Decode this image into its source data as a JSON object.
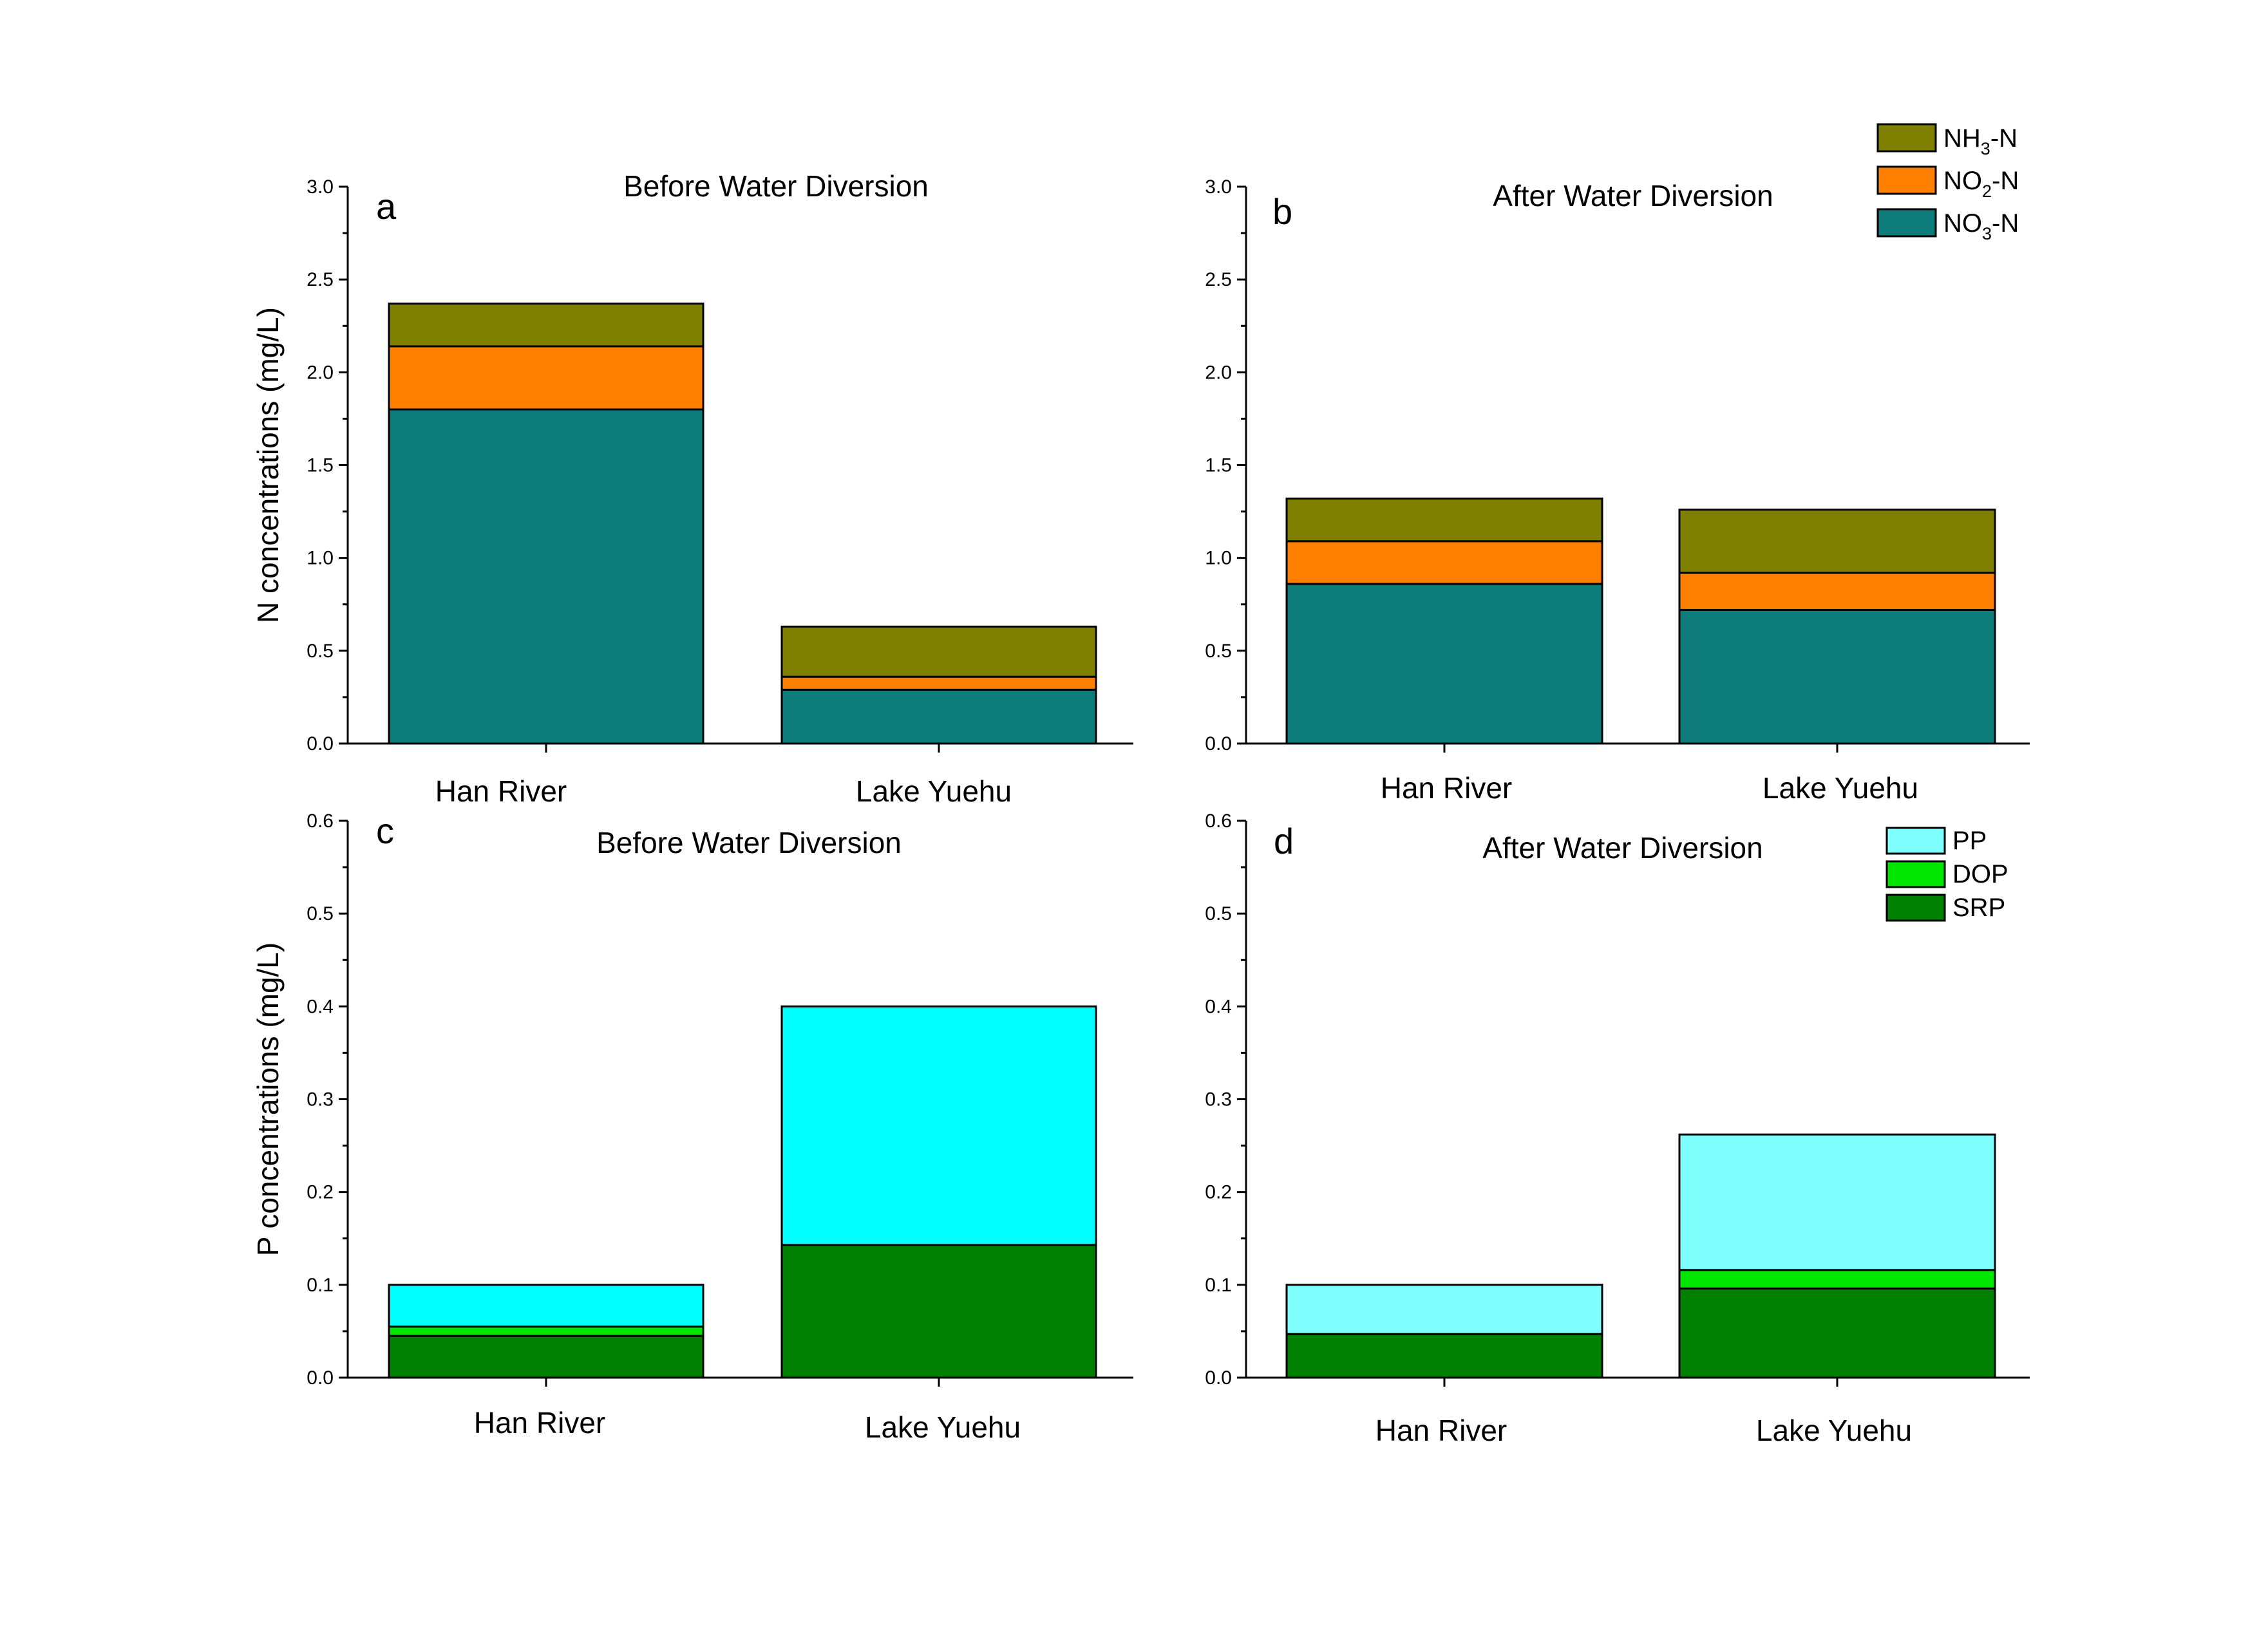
{
  "chart_data": [
    {
      "panel": "a",
      "type": "bar",
      "stacked": true,
      "title": "Before Water Diversion",
      "ylabel": "N concentrations (mg/L)",
      "categories": [
        "Han River",
        "Lake Yuehu"
      ],
      "ylim": [
        0,
        3.0
      ],
      "yticks": [
        "0.0",
        "0.5",
        "1.0",
        "1.5",
        "2.0",
        "2.5",
        "3.0"
      ],
      "series": [
        {
          "name": "NO3-N",
          "color": "#0E7C7B",
          "values": [
            1.8,
            0.29
          ]
        },
        {
          "name": "NO2-N",
          "color": "#FF8000",
          "values": [
            0.34,
            0.07
          ]
        },
        {
          "name": "NH3-N",
          "color": "#808000",
          "values": [
            0.23,
            0.27
          ]
        }
      ]
    },
    {
      "panel": "b",
      "type": "bar",
      "stacked": true,
      "title": "After Water Diversion",
      "ylabel": "",
      "categories": [
        "Han River",
        "Lake Yuehu"
      ],
      "ylim": [
        0,
        3.0
      ],
      "yticks": [
        "0.0",
        "0.5",
        "1.0",
        "1.5",
        "2.0",
        "2.5",
        "3.0"
      ],
      "series": [
        {
          "name": "NO3-N",
          "color": "#0E7C7B",
          "values": [
            0.86,
            0.72
          ]
        },
        {
          "name": "NO2-N",
          "color": "#FF8000",
          "values": [
            0.23,
            0.2
          ]
        },
        {
          "name": "NH3-N",
          "color": "#808000",
          "values": [
            0.23,
            0.34
          ]
        }
      ]
    },
    {
      "panel": "c",
      "type": "bar",
      "stacked": true,
      "title": "Before Water Diversion",
      "ylabel": "P concentrations (mg/L)",
      "categories": [
        "Han River",
        "Lake Yuehu"
      ],
      "ylim": [
        0,
        0.6
      ],
      "yticks": [
        "0.0",
        "0.1",
        "0.2",
        "0.3",
        "0.4",
        "0.5",
        "0.6"
      ],
      "series": [
        {
          "name": "SRP",
          "color": "#008000",
          "values": [
            0.045,
            0.143
          ]
        },
        {
          "name": "DOP",
          "color": "#00E600",
          "values": [
            0.01,
            0.0
          ]
        },
        {
          "name": "PP",
          "color": "#00FFFF",
          "values": [
            0.045,
            0.257
          ]
        }
      ]
    },
    {
      "panel": "d",
      "type": "bar",
      "stacked": true,
      "title": "After Water Diversion",
      "ylabel": "",
      "categories": [
        "Han River",
        "Lake Yuehu"
      ],
      "ylim": [
        0,
        0.6
      ],
      "yticks": [
        "0.0",
        "0.1",
        "0.2",
        "0.3",
        "0.4",
        "0.5",
        "0.6"
      ],
      "series": [
        {
          "name": "SRP",
          "color": "#008000",
          "values": [
            0.047,
            0.096
          ]
        },
        {
          "name": "DOP",
          "color": "#00E600",
          "values": [
            0.0,
            0.02
          ]
        },
        {
          "name": "PP",
          "color": "#80FFFF",
          "values": [
            0.053,
            0.146
          ]
        }
      ]
    }
  ],
  "legends": {
    "nitrogen": [
      {
        "base": "NH",
        "sub": "3",
        "suffix": "-N",
        "color": "#808000"
      },
      {
        "base": "NO",
        "sub": "2",
        "suffix": "-N",
        "color": "#FF8000"
      },
      {
        "base": "NO",
        "sub": "3",
        "suffix": "-N",
        "color": "#0E7C7B"
      }
    ],
    "phosphorus": [
      {
        "label": "PP",
        "color": "#80FFFF"
      },
      {
        "label": "DOP",
        "color": "#00E600"
      },
      {
        "label": "SRP",
        "color": "#008000"
      }
    ]
  }
}
